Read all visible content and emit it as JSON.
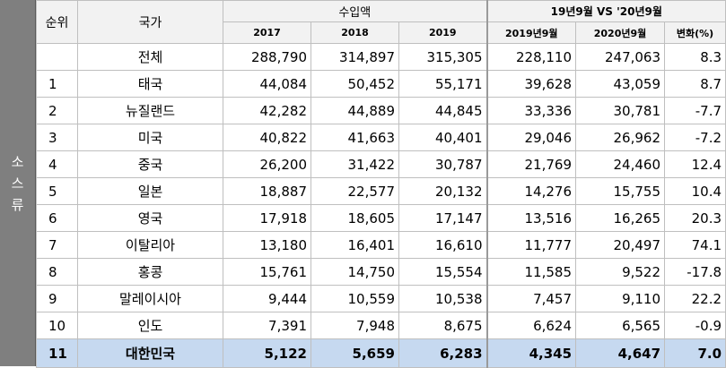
{
  "side_label": [
    "소",
    "스",
    "류"
  ],
  "header": {
    "rank": "순위",
    "country": "국가",
    "import_group": "수입액",
    "period_group": "19년9월 VS '20년9월",
    "years": [
      "2017",
      "2018",
      "2019"
    ],
    "period_cols": [
      "2019년9월",
      "2020년9월",
      "변화(%)"
    ]
  },
  "rows": [
    {
      "rank": "",
      "country": "전체",
      "v2017": "288,790",
      "v2018": "314,897",
      "v2019": "315,305",
      "s2019": "228,110",
      "s2020": "247,063",
      "change": "8.3"
    },
    {
      "rank": "1",
      "country": "태국",
      "v2017": "44,084",
      "v2018": "50,452",
      "v2019": "55,171",
      "s2019": "39,628",
      "s2020": "43,059",
      "change": "8.7"
    },
    {
      "rank": "2",
      "country": "뉴질랜드",
      "v2017": "42,282",
      "v2018": "44,889",
      "v2019": "44,845",
      "s2019": "33,336",
      "s2020": "30,781",
      "change": "-7.7"
    },
    {
      "rank": "3",
      "country": "미국",
      "v2017": "40,822",
      "v2018": "41,663",
      "v2019": "40,401",
      "s2019": "29,046",
      "s2020": "26,962",
      "change": "-7.2"
    },
    {
      "rank": "4",
      "country": "중국",
      "v2017": "26,200",
      "v2018": "31,422",
      "v2019": "30,787",
      "s2019": "21,769",
      "s2020": "24,460",
      "change": "12.4"
    },
    {
      "rank": "5",
      "country": "일본",
      "v2017": "18,887",
      "v2018": "22,577",
      "v2019": "20,132",
      "s2019": "14,276",
      "s2020": "15,755",
      "change": "10.4"
    },
    {
      "rank": "6",
      "country": "영국",
      "v2017": "17,918",
      "v2018": "18,605",
      "v2019": "17,147",
      "s2019": "13,516",
      "s2020": "16,265",
      "change": "20.3"
    },
    {
      "rank": "7",
      "country": "이탈리아",
      "v2017": "13,180",
      "v2018": "16,401",
      "v2019": "16,610",
      "s2019": "11,777",
      "s2020": "20,497",
      "change": "74.1"
    },
    {
      "rank": "8",
      "country": "홍콩",
      "v2017": "15,761",
      "v2018": "14,750",
      "v2019": "15,554",
      "s2019": "11,585",
      "s2020": "9,522",
      "change": "-17.8"
    },
    {
      "rank": "9",
      "country": "말레이시아",
      "v2017": "9,444",
      "v2018": "10,559",
      "v2019": "10,538",
      "s2019": "7,457",
      "s2020": "9,110",
      "change": "22.2"
    },
    {
      "rank": "10",
      "country": "인도",
      "v2017": "7,391",
      "v2018": "7,948",
      "v2019": "8,675",
      "s2019": "6,624",
      "s2020": "6,565",
      "change": "-0.9"
    },
    {
      "rank": "11",
      "country": "대한민국",
      "v2017": "5,122",
      "v2018": "5,659",
      "v2019": "6,283",
      "s2019": "4,345",
      "s2020": "4,647",
      "change": "7.0",
      "highlight": true
    }
  ]
}
